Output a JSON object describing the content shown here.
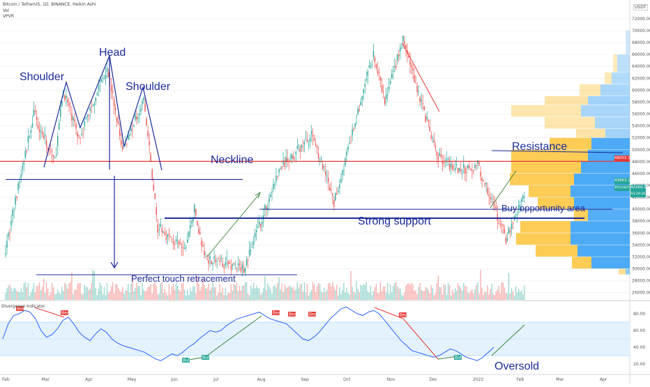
{
  "header": {
    "symbol_line": "Bitcoin / TetherUS, 1D, BINANCE, Heikin Ashi",
    "vol_label": "Vol",
    "vpvr_label": "VPVR",
    "currency": "USDT"
  },
  "indicator": {
    "title": "Divergence Indicator",
    "ticks": [
      "80.00",
      "60.00",
      "40.00",
      "20.00"
    ],
    "bear_label": "Bear",
    "bull_label": "Bull"
  },
  "price_boxes": {
    "resistance": "48055.10",
    "upper": "43663.12",
    "symbol": "BTCUSDT",
    "last": "42269.52",
    "countdown": "03:29:28"
  },
  "annotations": {
    "head": "Head",
    "shoulder_left": "Shoulder",
    "shoulder_right": "Shoulder",
    "neckline": "Neckline",
    "resistance": "Resistance",
    "buy_area": "Buy opportunity area",
    "strong_support": "Strong support",
    "perfect_touch": "Perfect touch retracement",
    "oversold": "Oversold"
  },
  "chart_data": {
    "type": "candlestick",
    "title": "Bitcoin / TetherUS, 1D, BINANCE, Heikin Ashi",
    "x_tick_labels": [
      "Feb",
      "Mar",
      "Apr",
      "May",
      "Jun",
      "Jul",
      "Aug",
      "Sep",
      "Oct",
      "Nov",
      "Dec",
      "2022",
      "Feb",
      "Mar",
      "Apr"
    ],
    "y_tick_labels": [
      "72000.00",
      "70000.00",
      "68000.00",
      "66000.00",
      "64000.00",
      "62000.00",
      "60000.00",
      "58000.00",
      "56000.00",
      "54000.00",
      "52000.00",
      "50000.00",
      "48000.00",
      "46000.00",
      "44000.00",
      "42000.00",
      "40000.00",
      "38000.00",
      "36000.00",
      "34000.00",
      "32000.00",
      "30000.00",
      "28000.00",
      "26000.00"
    ],
    "ylim": [
      25000,
      73000
    ],
    "price_path": [
      {
        "date": "2021-02-01",
        "close": 33500
      },
      {
        "date": "2021-02-21",
        "close": 56000
      },
      {
        "date": "2021-03-08",
        "close": 48000
      },
      {
        "date": "2021-03-14",
        "close": 60000
      },
      {
        "date": "2021-03-25",
        "close": 52000
      },
      {
        "date": "2021-04-14",
        "close": 64000
      },
      {
        "date": "2021-04-25",
        "close": 50000
      },
      {
        "date": "2021-05-10",
        "close": 58500
      },
      {
        "date": "2021-05-20",
        "close": 37000
      },
      {
        "date": "2021-06-08",
        "close": 33000
      },
      {
        "date": "2021-06-15",
        "close": 40000
      },
      {
        "date": "2021-06-22",
        "close": 32000
      },
      {
        "date": "2021-07-20",
        "close": 30000
      },
      {
        "date": "2021-08-15",
        "close": 47000
      },
      {
        "date": "2021-09-07",
        "close": 52500
      },
      {
        "date": "2021-09-22",
        "close": 41000
      },
      {
        "date": "2021-10-20",
        "close": 66000
      },
      {
        "date": "2021-10-28",
        "close": 58000
      },
      {
        "date": "2021-11-10",
        "close": 68500
      },
      {
        "date": "2021-12-04",
        "close": 49000
      },
      {
        "date": "2021-12-20",
        "close": 46500
      },
      {
        "date": "2022-01-02",
        "close": 47500
      },
      {
        "date": "2022-01-22",
        "close": 35000
      },
      {
        "date": "2022-02-04",
        "close": 42300
      }
    ],
    "levels": [
      {
        "name": "Resistance",
        "value": 48055.1
      },
      {
        "name": "Neckline",
        "value": 45000
      },
      {
        "name": "Buy opportunity area",
        "value": 40000
      },
      {
        "name": "Strong support",
        "value": 38500
      },
      {
        "name": "Perfect touch retracement",
        "value": 29000
      }
    ],
    "last_price": 42269.52,
    "indicator_series": {
      "name": "Divergence Indicator",
      "ylim": [
        10,
        95
      ],
      "bands": [
        70,
        30
      ],
      "values": [
        50,
        68,
        78,
        80,
        84,
        82,
        74,
        60,
        52,
        55,
        62,
        72,
        76,
        68,
        58,
        52,
        48,
        56,
        62,
        58,
        50,
        45,
        42,
        40,
        38,
        36,
        34,
        30,
        26,
        24,
        28,
        32,
        30,
        34,
        40,
        44,
        50,
        55,
        60,
        58,
        60,
        66,
        70,
        74,
        76,
        78,
        80,
        82,
        78,
        74,
        72,
        70,
        68,
        62,
        56,
        50,
        48,
        52,
        58,
        66,
        74,
        80,
        86,
        88,
        84,
        80,
        78,
        82,
        84,
        80,
        72,
        64,
        56,
        48,
        42,
        36,
        34,
        32,
        30,
        28,
        30,
        34,
        38,
        36,
        32,
        28,
        26,
        24,
        28,
        34,
        40
      ]
    }
  }
}
